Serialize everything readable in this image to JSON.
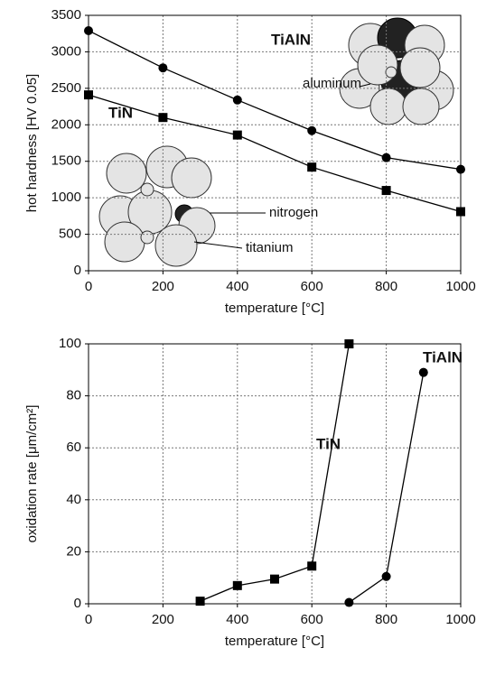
{
  "chart_data": [
    {
      "type": "line",
      "ylabel": "hot hardness [HV 0.05]",
      "xlabel": "temperature [°C]",
      "xlim": [
        0,
        1000
      ],
      "xticks": [
        0,
        200,
        400,
        600,
        800,
        1000
      ],
      "ylim": [
        0,
        3500
      ],
      "yticks": [
        0,
        500,
        1000,
        1500,
        2000,
        2500,
        3000,
        3500
      ],
      "grid": true,
      "series": [
        {
          "name": "TiAlN",
          "color": "#000000",
          "marker": "circle",
          "x": [
            0,
            200,
            400,
            600,
            800,
            1000
          ],
          "values": [
            3290,
            2780,
            2340,
            1920,
            1550,
            1390
          ]
        },
        {
          "name": "TiN",
          "color": "#000000",
          "marker": "square",
          "x": [
            0,
            200,
            400,
            600,
            800,
            1000
          ],
          "values": [
            2410,
            2100,
            1860,
            1420,
            1100,
            810
          ]
        }
      ],
      "annotations": [
        "aluminum",
        "nitrogen",
        "titanium"
      ]
    },
    {
      "type": "line",
      "ylabel": "oxidation rate [μm/cm²]",
      "xlabel": "temperature [°C]",
      "xlim": [
        0,
        1000
      ],
      "xticks": [
        0,
        200,
        400,
        600,
        800,
        1000
      ],
      "ylim": [
        0,
        100
      ],
      "yticks": [
        0,
        20,
        40,
        60,
        80,
        100
      ],
      "grid": true,
      "series": [
        {
          "name": "TiN",
          "color": "#000000",
          "marker": "square",
          "x": [
            300,
            400,
            500,
            600,
            700
          ],
          "values": [
            1,
            7,
            9.5,
            14.5,
            100
          ]
        },
        {
          "name": "TiAlN",
          "color": "#000000",
          "marker": "circle",
          "x": [
            700,
            800,
            900
          ],
          "values": [
            0.5,
            10.5,
            89
          ]
        }
      ]
    }
  ]
}
